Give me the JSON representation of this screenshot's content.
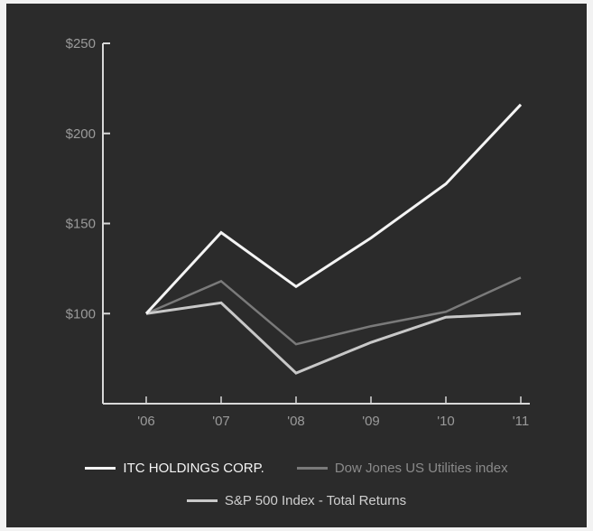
{
  "chart_data": {
    "type": "line",
    "title": "",
    "xlabel": "",
    "ylabel": "",
    "categories": [
      "'06",
      "'07",
      "'08",
      "'09",
      "'10",
      "'11"
    ],
    "y_ticks": [
      "$100",
      "$150",
      "$200",
      "$250"
    ],
    "y_tick_values": [
      100,
      150,
      200,
      250
    ],
    "ylim": [
      50,
      250
    ],
    "grid": false,
    "legend_position": "bottom",
    "series": [
      {
        "name": "ITC HOLDINGS CORP.",
        "color": "#f4f4f4",
        "values": [
          100,
          145,
          115,
          142,
          172,
          216
        ]
      },
      {
        "name": "Dow Jones US Utilities index",
        "color": "#7a7a7a",
        "values": [
          100,
          118,
          83,
          93,
          101,
          120
        ]
      },
      {
        "name": "S&P 500 Index - Total Returns",
        "color": "#c8c8c8",
        "values": [
          100,
          106,
          67,
          84,
          98,
          100
        ]
      }
    ]
  }
}
